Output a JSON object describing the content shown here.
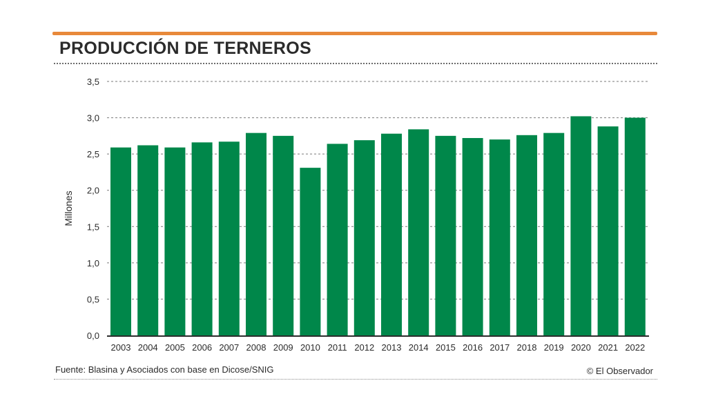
{
  "header": {
    "title": "PRODUCCIÓN DE TERNEROS"
  },
  "footer": {
    "source": "Fuente: Blasina y Asociados con base en Dicose/SNIG",
    "credit": "© El Observador"
  },
  "colors": {
    "accent": "#e8893a",
    "bar": "#00874a",
    "text": "#2b2b2b"
  },
  "chart_data": {
    "type": "bar",
    "title": "PRODUCCIÓN DE TERNEROS",
    "xlabel": "",
    "ylabel": "Millones",
    "ylim": [
      0,
      3.5
    ],
    "yticks": [
      "0,0",
      "0,5",
      "1,0",
      "1,5",
      "2,0",
      "2,5",
      "3,0",
      "3,5"
    ],
    "grid": true,
    "categories": [
      "2003",
      "2004",
      "2005",
      "2006",
      "2007",
      "2008",
      "2009",
      "2010",
      "2011",
      "2012",
      "2013",
      "2014",
      "2015",
      "2016",
      "2017",
      "2018",
      "2019",
      "2020",
      "2021",
      "2022"
    ],
    "values": [
      2.59,
      2.62,
      2.59,
      2.66,
      2.67,
      2.79,
      2.75,
      2.31,
      2.64,
      2.69,
      2.78,
      2.84,
      2.75,
      2.72,
      2.7,
      2.76,
      2.79,
      3.02,
      2.88,
      3.0
    ]
  }
}
